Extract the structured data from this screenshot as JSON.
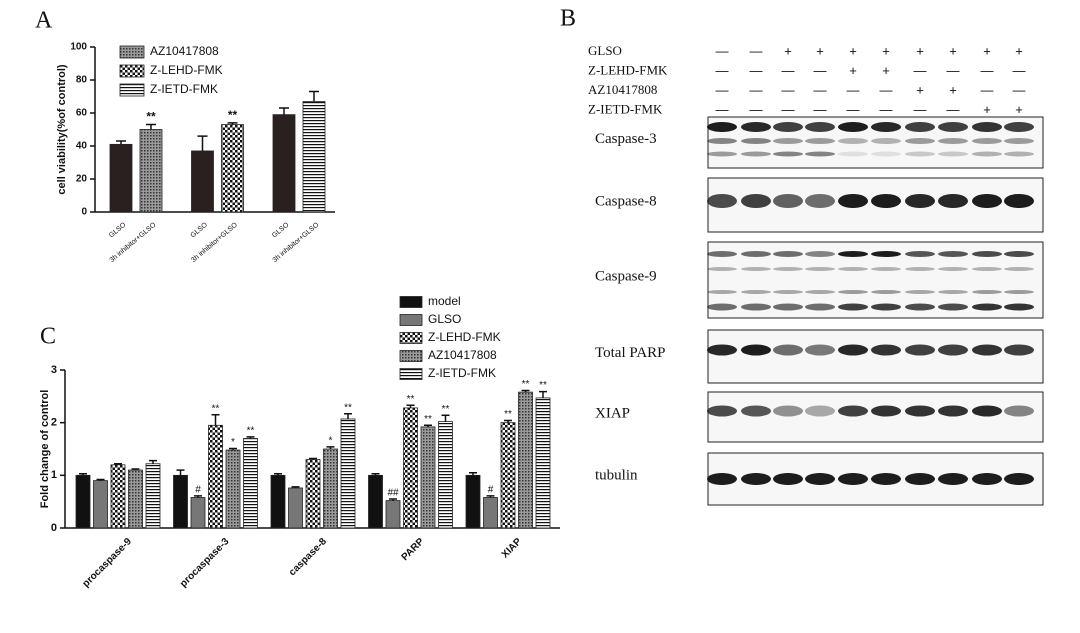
{
  "chart_data": [
    {
      "type": "bar",
      "panel": "A",
      "y_label": "cell viability(%of control)",
      "categories": [
        "GLSO",
        "3h inhibitor+GLSO",
        "GLSO",
        "3h inhibitor+GLSO",
        "GLSO",
        "3h inhibitor+GLSO"
      ],
      "values": [
        41,
        50,
        37,
        53,
        59,
        67
      ],
      "errors": [
        2,
        3,
        9,
        1,
        4,
        6
      ],
      "patterns": [
        "solid",
        "dots",
        "solid",
        "checker",
        "solid",
        "hlines"
      ],
      "color": "#2a2020",
      "significance": [
        null,
        "**",
        null,
        "**",
        null,
        null
      ],
      "legend": [
        {
          "name": "AZ10417808",
          "pattern": "dots"
        },
        {
          "name": "Z-LEHD-FMK",
          "pattern": "checker"
        },
        {
          "name": "Z-IETD-FMK",
          "pattern": "hlines"
        }
      ],
      "ylim": [
        0,
        100
      ],
      "yticks": [
        0,
        20,
        40,
        60,
        80,
        100
      ]
    },
    {
      "type": "grouped_bar",
      "panel": "C",
      "y_label": "Fold change of control",
      "categories": [
        "procaspase-9",
        "procaspase-3",
        "caspase-8",
        "PARP",
        "XIAP"
      ],
      "series": [
        {
          "name": "model",
          "color": "#111111",
          "pattern": "solid",
          "values": [
            1.0,
            1.0,
            1.0,
            1.0,
            1.0
          ],
          "errors": [
            0.03,
            0.1,
            0.03,
            0.03,
            0.05
          ],
          "significance": [
            null,
            null,
            null,
            null,
            null
          ]
        },
        {
          "name": "GLSO",
          "color": "#777777",
          "pattern": "solid",
          "values": [
            0.9,
            0.58,
            0.76,
            0.52,
            0.58
          ],
          "errors": [
            0.02,
            0.03,
            0.02,
            0.03,
            0.03
          ],
          "significance": [
            null,
            "#",
            null,
            "##",
            "#"
          ]
        },
        {
          "name": "Z-LEHD-FMK",
          "color": "#111111",
          "pattern": "checker",
          "values": [
            1.2,
            1.95,
            1.3,
            2.28,
            2.0
          ],
          "errors": [
            0.02,
            0.2,
            0.02,
            0.05,
            0.04
          ],
          "significance": [
            null,
            "**",
            null,
            "**",
            "**"
          ]
        },
        {
          "name": "AZ10417808",
          "color": "#555555",
          "pattern": "dots",
          "values": [
            1.1,
            1.48,
            1.5,
            1.92,
            2.58
          ],
          "errors": [
            0.02,
            0.03,
            0.04,
            0.03,
            0.03
          ],
          "significance": [
            null,
            "*",
            "*",
            "**",
            "**"
          ]
        },
        {
          "name": "Z-IETD-FMK",
          "color": "#111111",
          "pattern": "hlines",
          "values": [
            1.22,
            1.7,
            2.07,
            2.02,
            2.47
          ],
          "errors": [
            0.06,
            0.03,
            0.1,
            0.12,
            0.12
          ],
          "significance": [
            null,
            "**",
            "**",
            "**",
            "**"
          ]
        }
      ],
      "ylim": [
        0,
        3
      ],
      "yticks": [
        0,
        1,
        2,
        3
      ]
    }
  ],
  "blot": {
    "panel": "B",
    "treatments": [
      {
        "label": "GLSO",
        "signs": [
          "—",
          "—",
          "+",
          "+",
          "+",
          "+",
          "+",
          "+",
          "+",
          "+"
        ]
      },
      {
        "label": "Z-LEHD-FMK",
        "signs": [
          "—",
          "—",
          "—",
          "—",
          "+",
          "+",
          "—",
          "—",
          "—",
          "—"
        ]
      },
      {
        "label": "AZ10417808",
        "signs": [
          "—",
          "—",
          "—",
          "—",
          "—",
          "—",
          "+",
          "+",
          "—",
          "—"
        ]
      },
      {
        "label": "Z-IETD-FMK",
        "signs": [
          "—",
          "—",
          "—",
          "—",
          "—",
          "—",
          "—",
          "—",
          "+",
          "+"
        ]
      }
    ],
    "proteins": [
      "Caspase-3",
      "Caspase-8",
      "Caspase-9",
      "Total PARP",
      "XIAP",
      "tubulin"
    ]
  }
}
